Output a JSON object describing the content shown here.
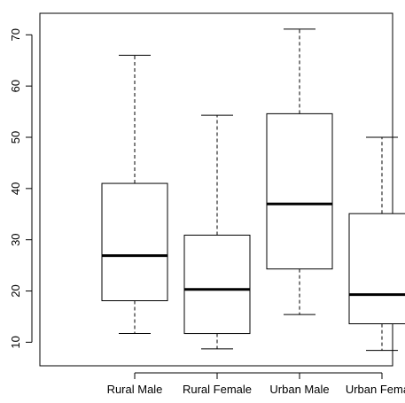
{
  "chart_data": {
    "type": "boxplot",
    "title": "",
    "xlabel": "",
    "ylabel": "",
    "ylim": [
      5.4,
      74.2
    ],
    "yticks": [
      10,
      20,
      30,
      40,
      50,
      60,
      70
    ],
    "ytick_labels": [
      "10",
      "20",
      "30",
      "40",
      "50",
      "60",
      "70"
    ],
    "grid": false,
    "categories": [
      "Rural Male",
      "Rural Female",
      "Urban Male",
      "Urban Female"
    ],
    "boxes": [
      {
        "category": "Rural Male",
        "whisker_low": 11.7,
        "q1": 18.1,
        "median": 26.9,
        "q3": 41.0,
        "whisker_high": 66.0
      },
      {
        "category": "Rural Female",
        "whisker_low": 8.7,
        "q1": 11.7,
        "median": 20.3,
        "q3": 30.9,
        "whisker_high": 54.3
      },
      {
        "category": "Urban Male",
        "whisker_low": 15.4,
        "q1": 24.3,
        "median": 37.0,
        "q3": 54.6,
        "whisker_high": 71.1
      },
      {
        "category": "Urban Female",
        "whisker_low": 8.4,
        "q1": 13.6,
        "median": 19.3,
        "q3": 35.1,
        "whisker_high": 50.0
      }
    ]
  }
}
